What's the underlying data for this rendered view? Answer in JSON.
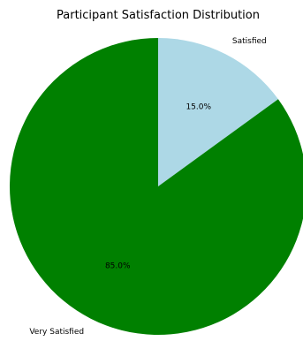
{
  "chart_data": {
    "type": "pie",
    "title": "Participant Satisfaction Distribution",
    "slices": [
      {
        "label": "Satisfied",
        "value": 15.0,
        "pct_label": "15.0%",
        "color": "#add8e6"
      },
      {
        "label": "Very Satisfied",
        "value": 85.0,
        "pct_label": "85.0%",
        "color": "#008000"
      }
    ],
    "start_angle_deg": 90,
    "direction": "clockwise",
    "legend": "none"
  }
}
